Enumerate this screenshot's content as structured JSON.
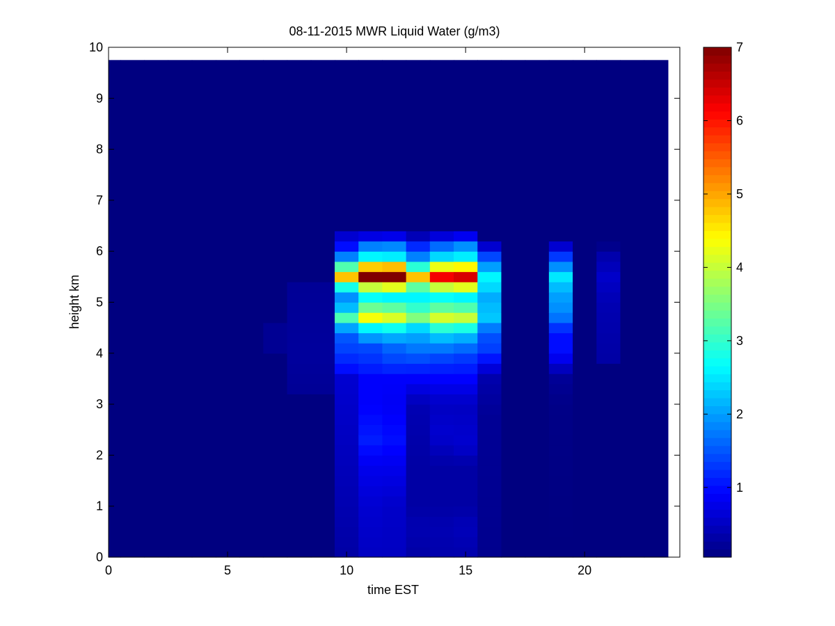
{
  "chart_data": {
    "type": "heatmap",
    "title": "08-11-2015 MWR Liquid Water (g/m3)",
    "xlabel": "time EST",
    "ylabel": "height km",
    "xlim": [
      0,
      24
    ],
    "ylim": [
      0,
      10
    ],
    "xticks": [
      "0",
      "5",
      "10",
      "15",
      "20"
    ],
    "xtick_values": [
      0,
      5,
      10,
      15,
      20
    ],
    "yticks": [
      "0",
      "1",
      "2",
      "3",
      "4",
      "5",
      "6",
      "7",
      "8",
      "9",
      "10"
    ],
    "ytick_values": [
      0,
      1,
      2,
      3,
      4,
      5,
      6,
      7,
      8,
      9,
      10
    ],
    "colorbar": {
      "colormap": "jet",
      "range": [
        0.05,
        7
      ],
      "ticks": [
        "1",
        "2",
        "3",
        "4",
        "5",
        "6",
        "7"
      ],
      "tick_values": [
        1,
        2,
        3,
        4,
        5,
        6,
        7
      ]
    },
    "x": [
      0,
      1,
      2,
      3,
      4,
      5,
      6,
      7,
      8,
      9,
      10,
      11,
      12,
      13,
      14,
      15,
      16,
      17,
      18,
      19,
      20,
      21,
      22,
      23
    ],
    "y": [
      0.1,
      0.3,
      0.5,
      0.7,
      0.9,
      1.1,
      1.3,
      1.5,
      1.7,
      1.9,
      2.1,
      2.3,
      2.5,
      2.7,
      2.9,
      3.1,
      3.3,
      3.5,
      3.7,
      3.9,
      4.1,
      4.3,
      4.5,
      4.7,
      4.9,
      5.1,
      5.3,
      5.5,
      5.7,
      5.9,
      6.1,
      6.3,
      6.5,
      6.7,
      6.9,
      7.1,
      7.3,
      7.5,
      7.7,
      7.9,
      8.1,
      8.3,
      8.5,
      8.7,
      8.9,
      9.1,
      9.3,
      9.5,
      9.7
    ],
    "columns": [
      {
        "x": [
          9.5,
          10.5
        ],
        "profile": [
          [
            0.0,
            0.3
          ],
          [
            1.8,
            0.45
          ],
          [
            3.5,
            0.6
          ],
          [
            3.7,
            1.0
          ],
          [
            4.0,
            1.3
          ],
          [
            4.3,
            1.5
          ],
          [
            4.6,
            2.3
          ],
          [
            4.75,
            3.6
          ],
          [
            4.9,
            2.2
          ],
          [
            5.1,
            1.9
          ],
          [
            5.3,
            2.8
          ],
          [
            5.5,
            4.8
          ],
          [
            5.7,
            3.2
          ],
          [
            5.9,
            1.8
          ],
          [
            6.1,
            1.0
          ],
          [
            6.3,
            0.6
          ],
          [
            6.45,
            0.05
          ]
        ]
      },
      {
        "x": [
          10.5,
          11.5
        ],
        "profile": [
          [
            0.0,
            0.5
          ],
          [
            1.0,
            0.6
          ],
          [
            1.8,
            0.8
          ],
          [
            2.3,
            1.1
          ],
          [
            3.0,
            0.9
          ],
          [
            3.5,
            0.9
          ],
          [
            3.8,
            1.2
          ],
          [
            4.1,
            1.4
          ],
          [
            4.4,
            2.2
          ],
          [
            4.6,
            3.0
          ],
          [
            4.75,
            5.0
          ],
          [
            4.9,
            3.4
          ],
          [
            5.1,
            2.7
          ],
          [
            5.3,
            4.0
          ],
          [
            5.5,
            7.0
          ],
          [
            5.65,
            5.6
          ],
          [
            5.8,
            3.0
          ],
          [
            6.0,
            2.2
          ],
          [
            6.2,
            1.4
          ],
          [
            6.4,
            0.05
          ]
        ]
      },
      {
        "x": [
          11.5,
          12.5
        ],
        "profile": [
          [
            0.0,
            0.5
          ],
          [
            1.0,
            0.55
          ],
          [
            1.8,
            0.8
          ],
          [
            2.3,
            1.0
          ],
          [
            3.0,
            0.85
          ],
          [
            3.5,
            0.9
          ],
          [
            3.8,
            1.3
          ],
          [
            4.1,
            1.6
          ],
          [
            4.4,
            2.3
          ],
          [
            4.6,
            3.2
          ],
          [
            4.75,
            4.6
          ],
          [
            4.9,
            3.3
          ],
          [
            5.1,
            2.6
          ],
          [
            5.3,
            4.2
          ],
          [
            5.5,
            7.0
          ],
          [
            5.65,
            5.8
          ],
          [
            5.8,
            2.9
          ],
          [
            6.0,
            2.2
          ],
          [
            6.2,
            1.5
          ],
          [
            6.4,
            0.05
          ]
        ]
      },
      {
        "x": [
          12.5,
          13.5
        ],
        "profile": [
          [
            0.0,
            0.3
          ],
          [
            0.6,
            0.4
          ],
          [
            1.0,
            0.3
          ],
          [
            1.8,
            0.3
          ],
          [
            3.0,
            0.4
          ],
          [
            3.6,
            1.0
          ],
          [
            4.0,
            1.6
          ],
          [
            4.3,
            2.0
          ],
          [
            4.6,
            2.6
          ],
          [
            4.75,
            4.0
          ],
          [
            4.9,
            3.0
          ],
          [
            5.1,
            2.6
          ],
          [
            5.3,
            3.3
          ],
          [
            5.5,
            4.8
          ],
          [
            5.65,
            3.4
          ],
          [
            5.8,
            2.0
          ],
          [
            6.0,
            1.6
          ],
          [
            6.2,
            0.8
          ],
          [
            6.4,
            0.05
          ]
        ]
      },
      {
        "x": [
          13.5,
          14.5
        ],
        "profile": [
          [
            0.0,
            0.35
          ],
          [
            0.6,
            0.4
          ],
          [
            1.0,
            0.3
          ],
          [
            1.8,
            0.3
          ],
          [
            2.4,
            0.6
          ],
          [
            3.0,
            0.5
          ],
          [
            3.6,
            1.0
          ],
          [
            4.0,
            1.5
          ],
          [
            4.3,
            2.2
          ],
          [
            4.6,
            3.3
          ],
          [
            4.75,
            4.5
          ],
          [
            4.9,
            3.3
          ],
          [
            5.1,
            2.7
          ],
          [
            5.3,
            4.0
          ],
          [
            5.5,
            6.2
          ],
          [
            5.65,
            5.0
          ],
          [
            5.8,
            2.8
          ],
          [
            6.0,
            2.0
          ],
          [
            6.2,
            1.3
          ],
          [
            6.4,
            0.05
          ]
        ]
      },
      {
        "x": [
          14.5,
          15.5
        ],
        "profile": [
          [
            0.0,
            0.35
          ],
          [
            0.6,
            0.45
          ],
          [
            1.0,
            0.3
          ],
          [
            1.8,
            0.3
          ],
          [
            2.2,
            0.6
          ],
          [
            3.0,
            0.5
          ],
          [
            3.6,
            1.0
          ],
          [
            4.0,
            1.4
          ],
          [
            4.3,
            2.1
          ],
          [
            4.6,
            3.2
          ],
          [
            4.75,
            4.4
          ],
          [
            4.9,
            3.2
          ],
          [
            5.1,
            2.6
          ],
          [
            5.3,
            4.2
          ],
          [
            5.5,
            6.4
          ],
          [
            5.65,
            5.2
          ],
          [
            5.8,
            2.9
          ],
          [
            6.0,
            2.2
          ],
          [
            6.2,
            1.6
          ],
          [
            6.4,
            0.05
          ]
        ]
      },
      {
        "x": [
          15.5,
          16.5
        ],
        "profile": [
          [
            0.0,
            0.15
          ],
          [
            2.8,
            0.2
          ],
          [
            3.5,
            0.35
          ],
          [
            3.8,
            0.8
          ],
          [
            4.0,
            1.3
          ],
          [
            4.4,
            1.5
          ],
          [
            4.75,
            2.4
          ],
          [
            4.9,
            2.2
          ],
          [
            5.1,
            2.1
          ],
          [
            5.3,
            2.4
          ],
          [
            5.5,
            2.6
          ],
          [
            5.7,
            2.0
          ],
          [
            5.9,
            1.4
          ],
          [
            6.1,
            0.6
          ],
          [
            6.2,
            0.05
          ]
        ]
      },
      {
        "x": [
          18.5,
          19.5
        ],
        "profile": [
          [
            0.0,
            0.05
          ],
          [
            3.0,
            0.1
          ],
          [
            3.5,
            0.2
          ],
          [
            3.8,
            0.6
          ],
          [
            4.0,
            1.0
          ],
          [
            4.4,
            1.0
          ],
          [
            4.6,
            1.5
          ],
          [
            4.8,
            1.9
          ],
          [
            5.0,
            1.9
          ],
          [
            5.3,
            2.2
          ],
          [
            5.5,
            2.5
          ],
          [
            5.7,
            1.9
          ],
          [
            5.9,
            1.3
          ],
          [
            6.1,
            0.6
          ],
          [
            6.2,
            0.05
          ]
        ]
      },
      {
        "x": [
          20.5,
          21.5
        ],
        "profile": [
          [
            0.0,
            0.05
          ],
          [
            3.7,
            0.05
          ],
          [
            3.8,
            0.3
          ],
          [
            4.5,
            0.35
          ],
          [
            5.0,
            0.4
          ],
          [
            5.5,
            0.55
          ],
          [
            6.0,
            0.3
          ],
          [
            6.15,
            0.05
          ]
        ]
      },
      {
        "x": [
          6.5,
          7.5
        ],
        "profile": [
          [
            0.0,
            0.05
          ],
          [
            3.9,
            0.05
          ],
          [
            4.0,
            0.18
          ],
          [
            4.5,
            0.18
          ],
          [
            4.6,
            0.05
          ]
        ]
      },
      {
        "x": [
          7.5,
          9.5
        ],
        "profile": [
          [
            0.0,
            0.05
          ],
          [
            3.2,
            0.05
          ],
          [
            3.3,
            0.2
          ],
          [
            4.0,
            0.25
          ],
          [
            5.3,
            0.2
          ],
          [
            5.4,
            0.05
          ]
        ]
      }
    ],
    "background_value": 0.05,
    "data_extent": {
      "xmax": 23.5,
      "ymax": 9.75
    },
    "grid": false
  }
}
